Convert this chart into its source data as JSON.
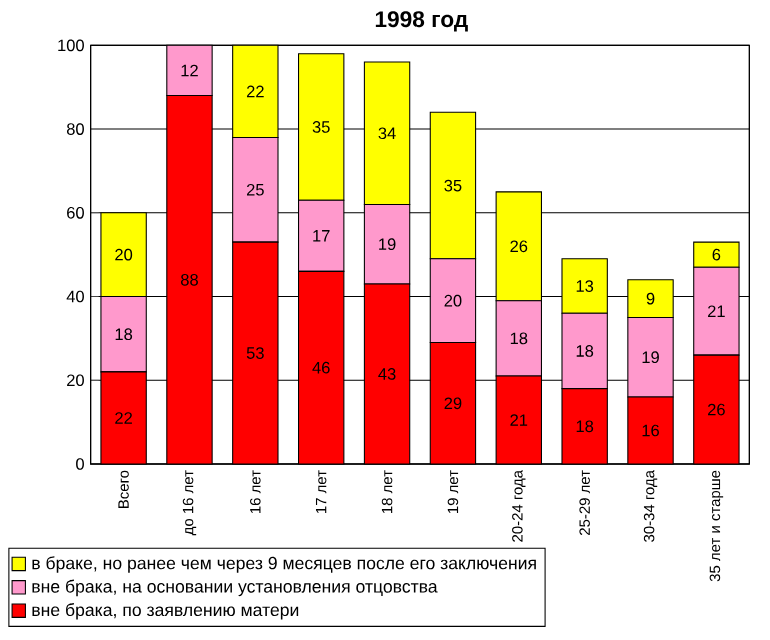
{
  "chart_data": {
    "type": "bar",
    "stacked": true,
    "title": "1998 год",
    "categories": [
      "Всего",
      "до 16 лет",
      "16 лет",
      "17 лет",
      "18 лет",
      "19 лет",
      "20-24 года",
      "25-29 лет",
      "30-34 года",
      "35 лет и старше"
    ],
    "series": [
      {
        "name": "вне брака, по заявлению матери",
        "color": "#ff0000",
        "values": [
          22,
          88,
          53,
          46,
          43,
          29,
          21,
          18,
          16,
          26
        ]
      },
      {
        "name": "вне брака, на основании установления отцовства",
        "color": "#ff99cc",
        "values": [
          18,
          12,
          25,
          17,
          19,
          20,
          18,
          18,
          19,
          21
        ]
      },
      {
        "name": "в браке, но ранее чем через 9 месяцев после его заключения",
        "color": "#ffff00",
        "values": [
          20,
          null,
          22,
          35,
          34,
          35,
          26,
          13,
          9,
          6
        ]
      }
    ],
    "ylim": [
      0,
      100
    ],
    "yticks": [
      0,
      20,
      40,
      60,
      80,
      100
    ],
    "grid": "y",
    "legend": "bottom",
    "data_labels": true
  }
}
